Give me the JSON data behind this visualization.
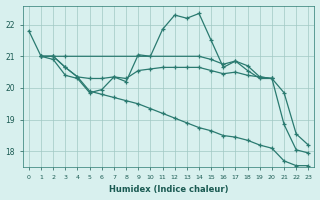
{
  "xlabel": "Humidex (Indice chaleur)",
  "bg_color": "#d8f0ee",
  "grid_color": "#a0c8c4",
  "line_color": "#2a7a70",
  "xlim": [
    -0.5,
    23.5
  ],
  "ylim": [
    17.5,
    22.6
  ],
  "yticks": [
    18,
    19,
    20,
    21,
    22
  ],
  "xticks": [
    0,
    1,
    2,
    3,
    4,
    5,
    6,
    7,
    8,
    9,
    10,
    11,
    12,
    13,
    14,
    15,
    16,
    17,
    18,
    19,
    20,
    21,
    22,
    23
  ],
  "line1_x": [
    0,
    1,
    2,
    3,
    4,
    5,
    6,
    7,
    8,
    9,
    10,
    11,
    12,
    13,
    14,
    15,
    16,
    17,
    18,
    19,
    20,
    21,
    22,
    23
  ],
  "line1_y": [
    21.8,
    21.0,
    20.9,
    20.4,
    20.3,
    19.85,
    19.95,
    20.35,
    20.2,
    21.05,
    21.0,
    21.85,
    22.3,
    22.2,
    22.35,
    21.5,
    20.65,
    20.85,
    20.55,
    20.3,
    20.3,
    18.85,
    18.05,
    17.95
  ],
  "line2_x": [
    1,
    2,
    3,
    14,
    15,
    16,
    17,
    18,
    19,
    20
  ],
  "line2_y": [
    21.0,
    21.0,
    21.0,
    21.0,
    20.9,
    20.75,
    20.85,
    20.7,
    20.35,
    20.3
  ],
  "line3_x": [
    1,
    2,
    3,
    4,
    5,
    6,
    7,
    8,
    9,
    10,
    11,
    12,
    13,
    14,
    15,
    16,
    17,
    18,
    19,
    20,
    21,
    22,
    23
  ],
  "line3_y": [
    21.0,
    21.0,
    20.65,
    20.35,
    20.3,
    20.3,
    20.35,
    20.3,
    20.55,
    20.6,
    20.65,
    20.65,
    20.65,
    20.65,
    20.55,
    20.45,
    20.5,
    20.4,
    20.35,
    20.3,
    19.85,
    18.55,
    18.2
  ],
  "line4_x": [
    1,
    2,
    3,
    4,
    5,
    6,
    7,
    8,
    9,
    10,
    11,
    12,
    13,
    14,
    15,
    16,
    17,
    18,
    19,
    20,
    21,
    22,
    23
  ],
  "line4_y": [
    21.0,
    21.0,
    20.65,
    20.35,
    19.9,
    19.8,
    19.7,
    19.6,
    19.5,
    19.35,
    19.2,
    19.05,
    18.9,
    18.75,
    18.65,
    18.5,
    18.45,
    18.35,
    18.2,
    18.1,
    17.7,
    17.55,
    17.55
  ]
}
